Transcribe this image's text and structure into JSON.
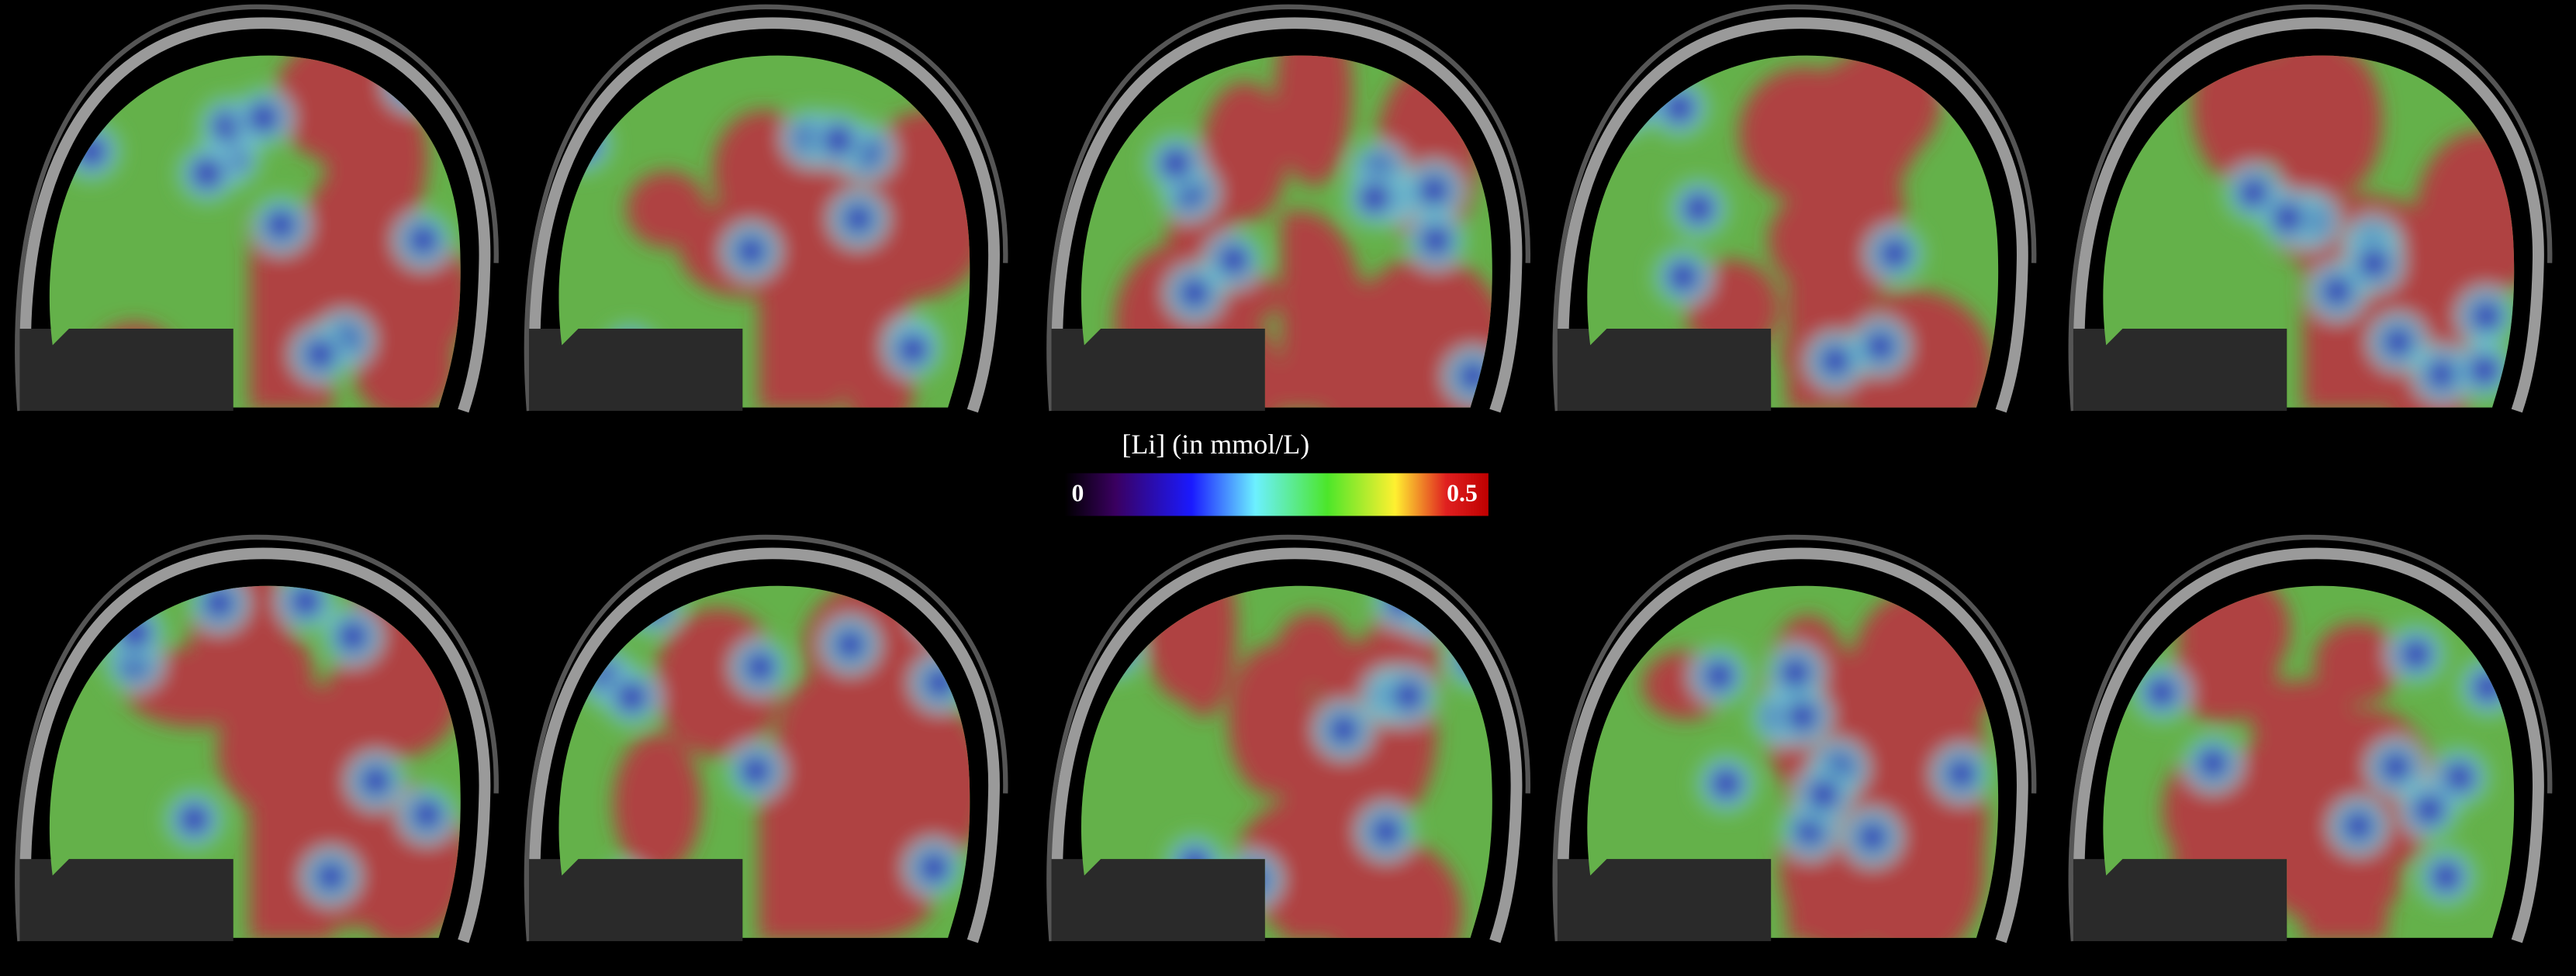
{
  "colorbar": {
    "label": "[Li] (in mmol/L)",
    "min": 0,
    "max": 0.5
  }
}
